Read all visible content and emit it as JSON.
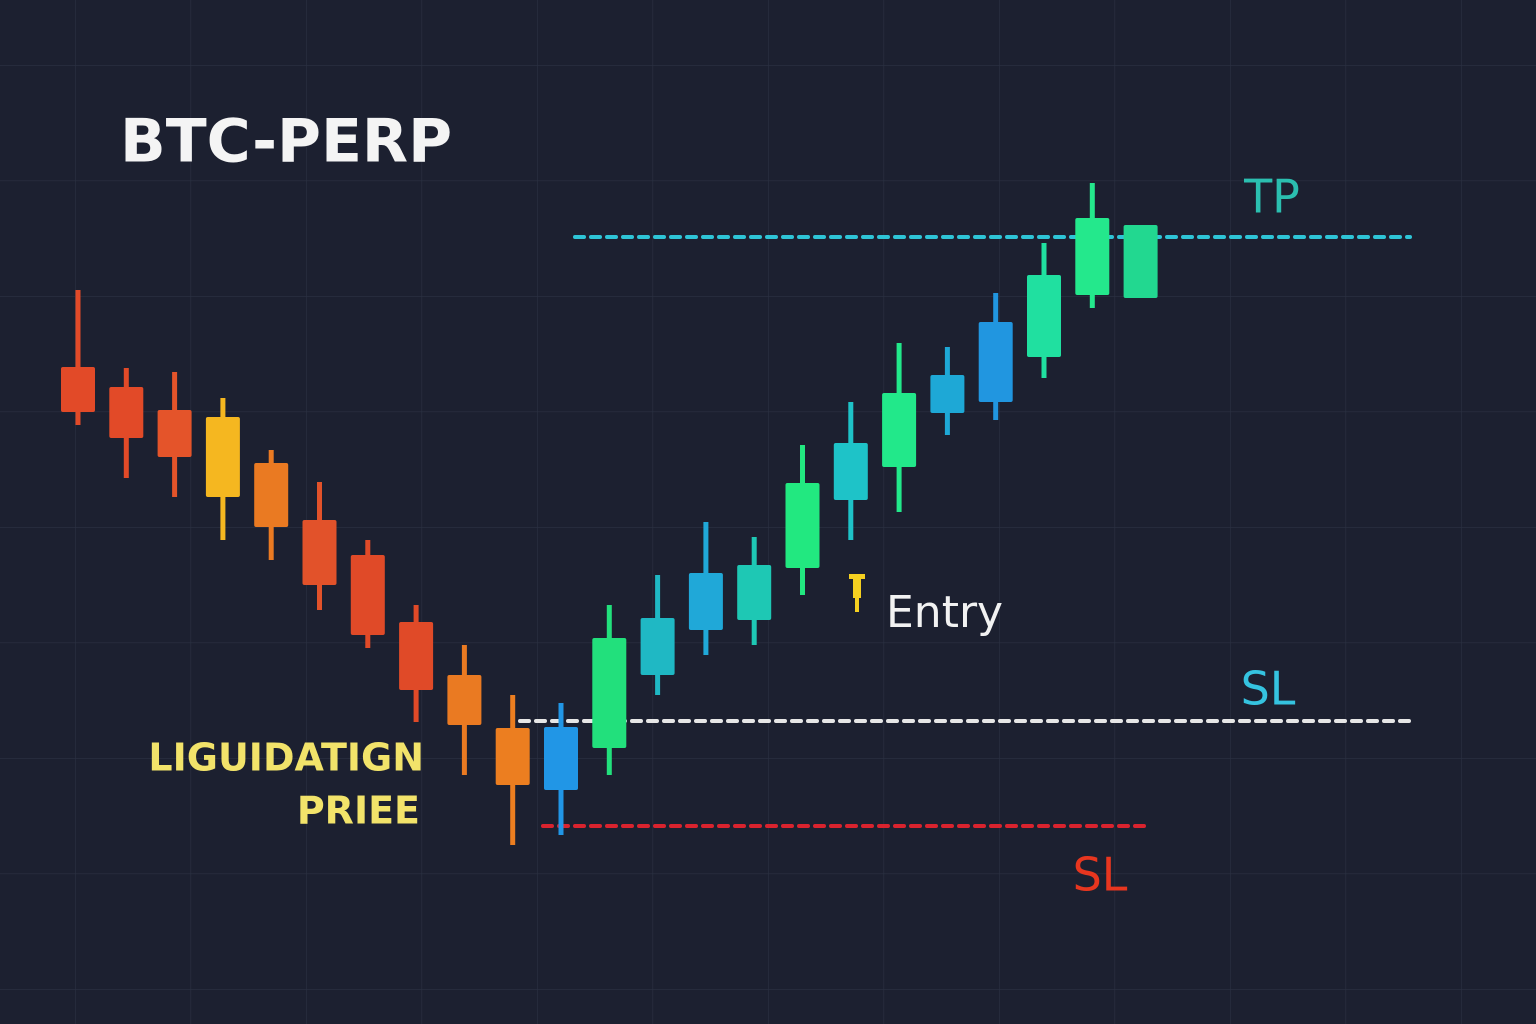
{
  "chart_data": {
    "type": "candlestick",
    "title": "BTC-PERP",
    "ylim": [
      0,
      1024
    ],
    "candles": [
      {
        "open": 657,
        "high": 734,
        "low": 599,
        "close": 612,
        "color": "#e24a28"
      },
      {
        "open": 637,
        "high": 656,
        "low": 546,
        "close": 586,
        "color": "#e24a28"
      },
      {
        "open": 614,
        "high": 652,
        "low": 527,
        "close": 567,
        "color": "#e4542a"
      },
      {
        "open": 607,
        "high": 626,
        "low": 484,
        "close": 527,
        "color": "#f5b720"
      },
      {
        "open": 561,
        "high": 574,
        "low": 464,
        "close": 497,
        "color": "#ea7a22"
      },
      {
        "open": 504,
        "high": 542,
        "low": 414,
        "close": 439,
        "color": "#e2522a"
      },
      {
        "open": 469,
        "high": 484,
        "low": 376,
        "close": 389,
        "color": "#e04a28"
      },
      {
        "open": 402,
        "high": 419,
        "low": 302,
        "close": 334,
        "color": "#e04a28"
      },
      {
        "open": 349,
        "high": 379,
        "low": 249,
        "close": 299,
        "color": "#ea7a22"
      },
      {
        "open": 296,
        "high": 329,
        "low": 179,
        "close": 239,
        "color": "#ec7e20"
      },
      {
        "open": 234,
        "high": 321,
        "low": 189,
        "close": 297,
        "color": "#2196e6"
      },
      {
        "open": 276,
        "high": 419,
        "low": 249,
        "close": 386,
        "color": "#22e07c"
      },
      {
        "open": 349,
        "high": 449,
        "low": 329,
        "close": 406,
        "color": "#1fb8c4"
      },
      {
        "open": 394,
        "high": 502,
        "low": 369,
        "close": 451,
        "color": "#20a8d8"
      },
      {
        "open": 404,
        "high": 487,
        "low": 379,
        "close": 459,
        "color": "#1ec8b4"
      },
      {
        "open": 456,
        "high": 579,
        "low": 429,
        "close": 541,
        "color": "#22e880"
      },
      {
        "open": 524,
        "high": 622,
        "low": 484,
        "close": 581,
        "color": "#1ec3c8"
      },
      {
        "open": 557,
        "high": 681,
        "low": 512,
        "close": 631,
        "color": "#22e88a"
      },
      {
        "open": 611,
        "high": 677,
        "low": 589,
        "close": 649,
        "color": "#1ea8d6"
      },
      {
        "open": 622,
        "high": 731,
        "low": 604,
        "close": 702,
        "color": "#2196e0"
      },
      {
        "open": 667,
        "high": 781,
        "low": 646,
        "close": 749,
        "color": "#20e0a0"
      },
      {
        "open": 729,
        "high": 841,
        "low": 716,
        "close": 806,
        "color": "#24e88c"
      },
      {
        "open": 726,
        "high": 799,
        "low": 726,
        "close": 799,
        "color": "#22d890"
      }
    ],
    "levels": [
      {
        "name": "TP",
        "value": 787,
        "color": "#2ec4d6",
        "label_color": "#2bbfb0"
      },
      {
        "name": "SL",
        "value": 303,
        "color": "#e6e6e6",
        "label_color": "#35c3e0"
      },
      {
        "name": "SL",
        "value": 198,
        "color": "#d9232e",
        "label_color": "#e8361f"
      }
    ],
    "annotations": {
      "entry": "Entry",
      "liquidation": [
        "LIGUIDATIGN",
        "PRIEE"
      ]
    }
  }
}
